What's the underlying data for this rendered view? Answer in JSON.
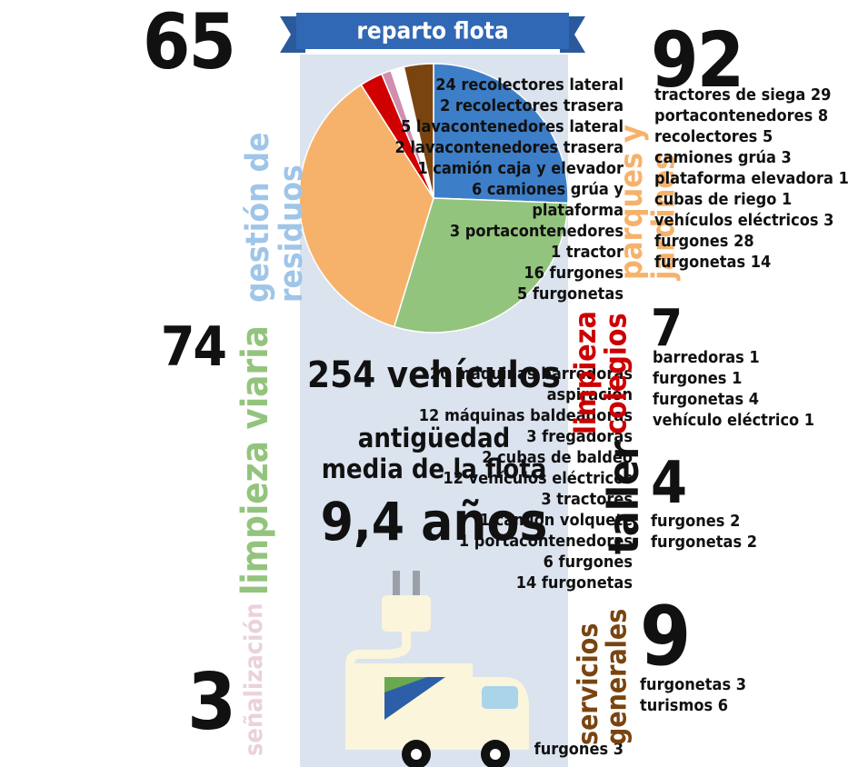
{
  "chart_data": {
    "type": "pie",
    "title": "reparto flota",
    "categories": [
      "gestión de residuos",
      "limpieza viaria",
      "parques y jardines",
      "limpieza colegios",
      "señalización",
      "taller",
      "servicios generales"
    ],
    "values": [
      65,
      74,
      92,
      7,
      3,
      4,
      9
    ],
    "colors": [
      "#3d7ec8",
      "#93c47d",
      "#f6b26b",
      "#d00000",
      "#cf8fae",
      "#ffffff",
      "#7a4410"
    ]
  },
  "groups": [
    {
      "items": [
        "24 recolectores lateral",
        "2 recolectores trasera",
        "5 lavacontenedores lateral",
        "2 lavacontenedores trasera",
        "1 camión caja y elevador",
        "6 camiones grúa y\nplataforma",
        "3 portacontenedores",
        "1 tractor",
        "16 furgones",
        "5 furgonetas"
      ]
    },
    {
      "items": [
        "20 máquinas barredoras\naspiración",
        "12 máquinas baldeadoras",
        "3 fregadoras",
        "2 cubas de baldeo",
        "12 vehículos eléctricos",
        "3 tractores",
        "1 camión volquete",
        "1 portacontenedores",
        "6 furgones",
        "14 furgonetas"
      ]
    },
    {
      "items": [
        "tractores de siega 29",
        "portacontenedores 8",
        "recolectores 5",
        "camiones grúa 3",
        "plataforma elevadora 1",
        "cubas de riego 1",
        "vehículos eléctricos 3",
        "furgones 28",
        "furgonetas 14"
      ]
    },
    {
      "items": [
        "barredoras 1",
        "furgones 1",
        "furgonetas 4",
        "vehículo eléctrico 1"
      ]
    },
    {
      "items": [
        "furgones 3"
      ]
    },
    {
      "items": [
        "furgones 2",
        "furgonetas 2"
      ]
    },
    {
      "items": [
        "furgonetas 3",
        "turismos 6"
      ]
    }
  ],
  "summary": {
    "total": "254 vehículos",
    "age_label": "antigüedad\nmedia de la flota",
    "age": "9,4 años"
  }
}
